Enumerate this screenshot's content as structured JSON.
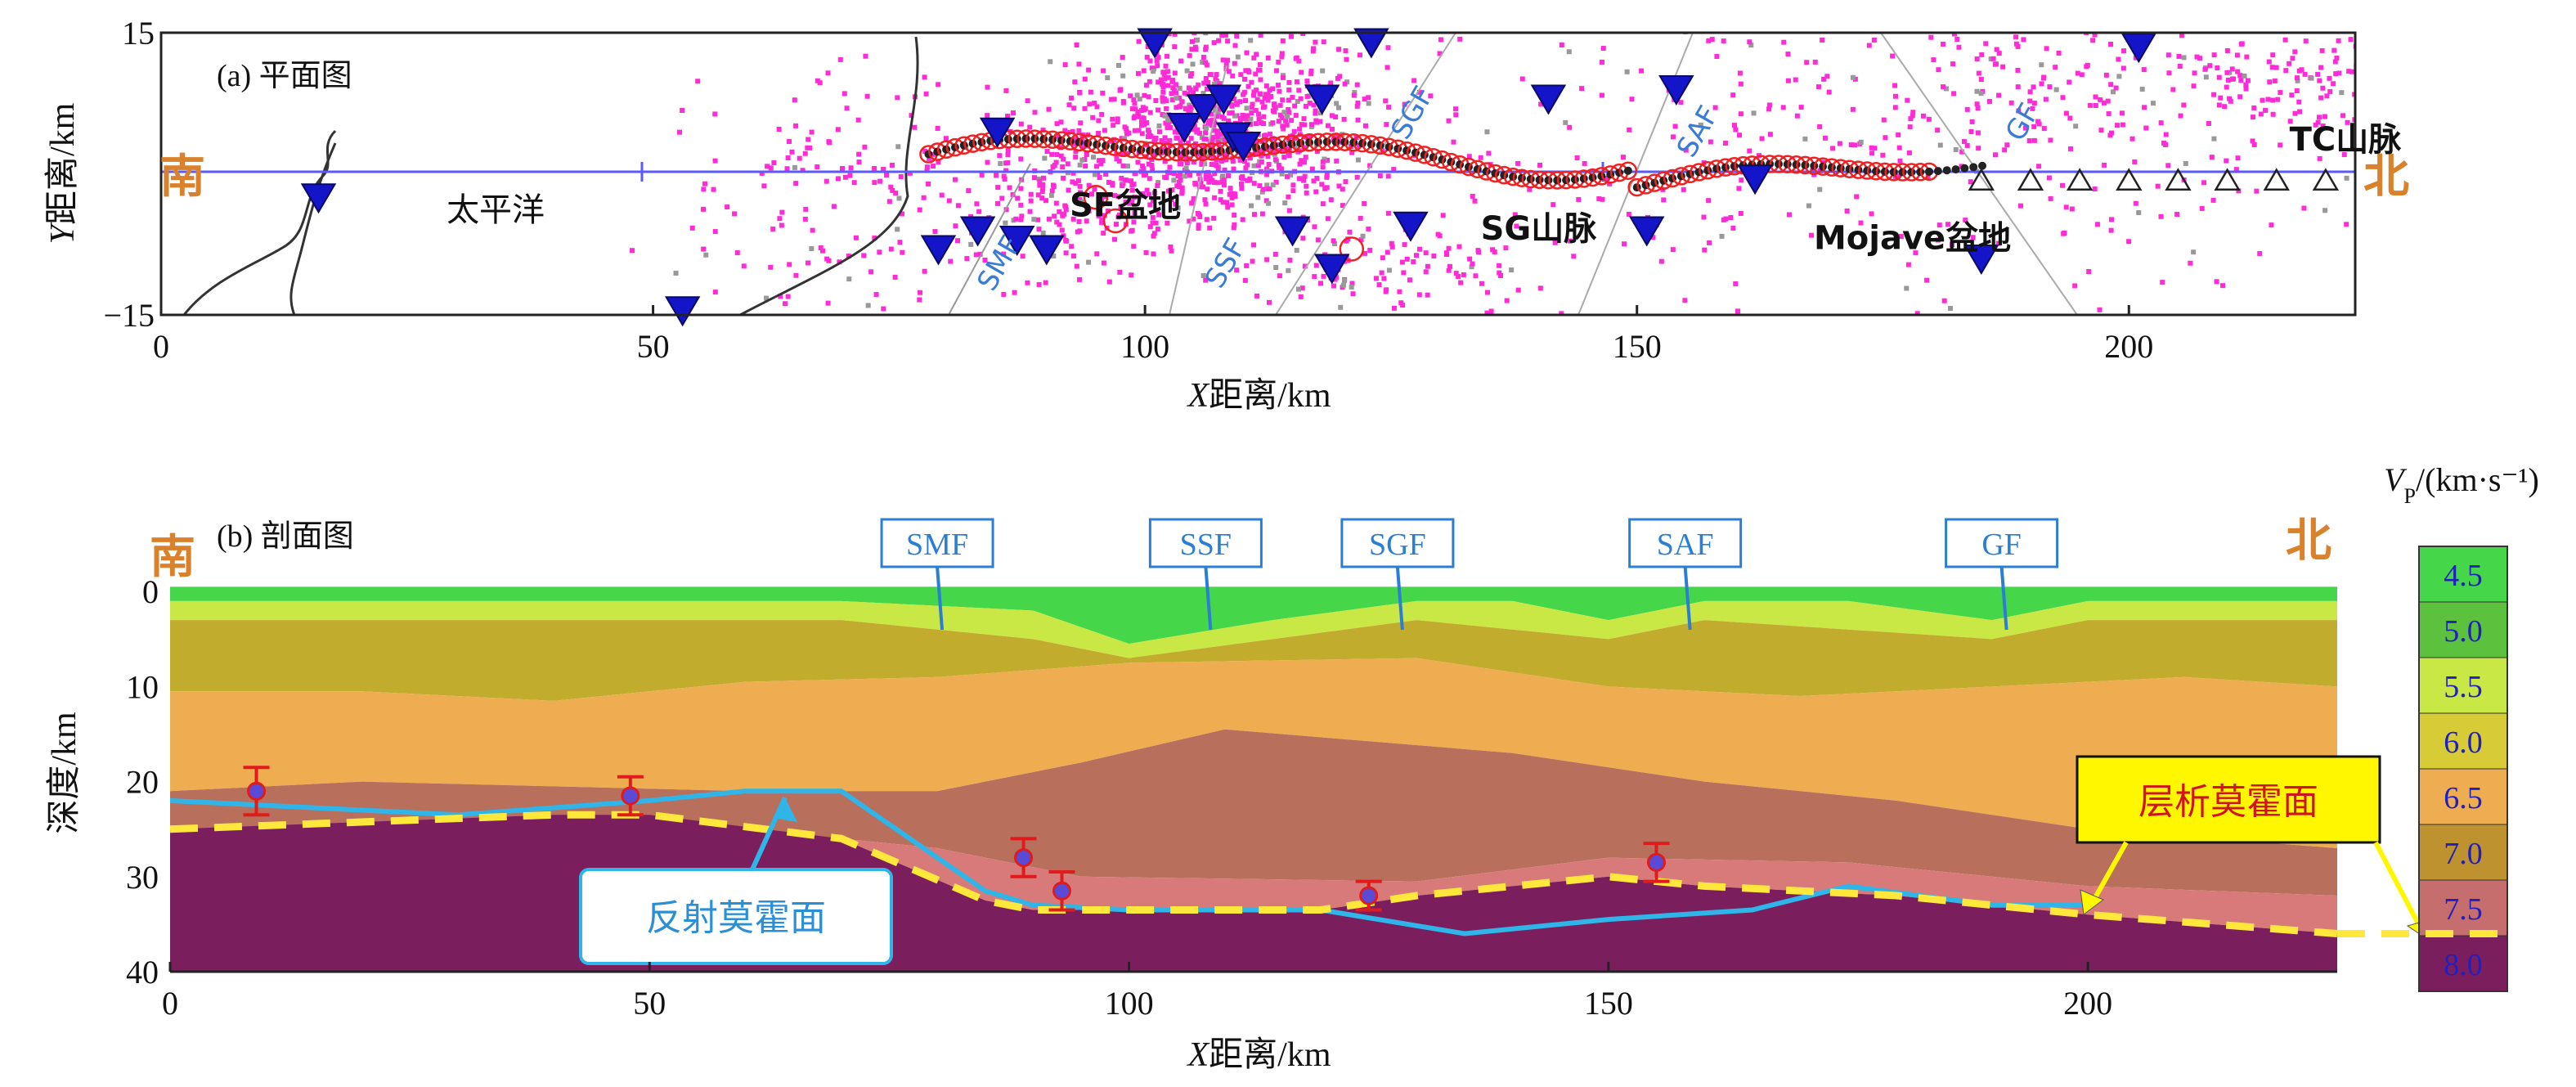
{
  "chart_data": [
    {
      "type": "scatter",
      "panel_label": "(a) 平面图",
      "xlabel_italic": "X",
      "xlabel": "距离/km",
      "ylabel_italic": "Y",
      "ylabel": "距离/km",
      "xlim": [
        0,
        223
      ],
      "ylim": [
        -15,
        15
      ],
      "x_ticks": [
        0,
        50,
        100,
        150,
        200
      ],
      "y_ticks": [
        {
          "value": 15,
          "label": "15"
        },
        {
          "value": -15,
          "label": "−15"
        }
      ],
      "direction_labels": {
        "south": "南",
        "north": "北"
      },
      "place_labels": [
        {
          "text": "太平洋",
          "x": 34,
          "y": -5,
          "bold": false
        },
        {
          "text": "SF盆地",
          "x": 98,
          "y": -4.5,
          "bold": true
        },
        {
          "text": "SG山脉",
          "x": 140,
          "y": -7,
          "bold": true
        },
        {
          "text": "Mojave盆地",
          "x": 178,
          "y": -8,
          "bold": true
        },
        {
          "text": "TC山脉",
          "x": 222,
          "y": 2.5,
          "bold": true
        }
      ],
      "fault_labels": [
        {
          "text": "SMF",
          "x": 86,
          "y": -10
        },
        {
          "text": "SSF",
          "x": 109,
          "y": -10
        },
        {
          "text": "SGF",
          "x": 128,
          "y": 6
        },
        {
          "text": "SAF",
          "x": 157,
          "y": 4
        },
        {
          "text": "GF",
          "x": 190,
          "y": 5
        }
      ],
      "stations_triangle_down": [
        [
          16,
          -2.5
        ],
        [
          53,
          -14.5
        ],
        [
          79,
          -8
        ],
        [
          83,
          -6
        ],
        [
          85,
          4.5
        ],
        [
          87,
          -7
        ],
        [
          90,
          -8
        ],
        [
          101,
          14
        ],
        [
          104,
          5
        ],
        [
          106,
          7
        ],
        [
          108,
          8
        ],
        [
          109,
          4
        ],
        [
          110,
          3
        ],
        [
          115,
          -6
        ],
        [
          118,
          8
        ],
        [
          119,
          -10
        ],
        [
          123,
          14
        ],
        [
          127,
          -5.5
        ],
        [
          141,
          8
        ],
        [
          151,
          -6
        ],
        [
          154,
          9
        ],
        [
          162,
          -0.5
        ],
        [
          185,
          -9
        ],
        [
          201,
          13.5
        ]
      ],
      "stations_triangle_open": [
        185,
        190,
        195,
        200,
        205,
        210,
        215,
        220
      ],
      "profile_line_y": 0,
      "profile_dots_range": [
        78,
        220
      ]
    },
    {
      "type": "heatmap",
      "panel_label": "(b) 剖面图",
      "xlabel_italic": "X",
      "xlabel": "距离/km",
      "ylabel": "深度/km",
      "xlim": [
        0,
        226
      ],
      "ylim": [
        40,
        -2
      ],
      "x_ticks": [
        0,
        50,
        100,
        150,
        200
      ],
      "y_ticks": [
        0,
        10,
        20,
        30,
        40
      ],
      "direction_labels": {
        "south": "南",
        "north": "北"
      },
      "fault_boxes": [
        {
          "text": "SMF",
          "x": 80
        },
        {
          "text": "SSF",
          "x": 108
        },
        {
          "text": "SGF",
          "x": 128
        },
        {
          "text": "SAF",
          "x": 158
        },
        {
          "text": "GF",
          "x": 191
        }
      ],
      "colorbar": {
        "title": "Vp/(km·s⁻¹)",
        "title_italic": "V",
        "title_sub": "P",
        "title_rest": "/(km·s⁻¹)",
        "values": [
          "4.5",
          "5.0",
          "5.5",
          "6.0",
          "6.5",
          "7.0",
          "7.5",
          "8.0"
        ],
        "colors": [
          "#45d64a",
          "#5cc23e",
          "#c9e845",
          "#d7cc35",
          "#efad52",
          "#bf9230",
          "#c66e6e",
          "#7b1e5e"
        ]
      },
      "tomo_moho": {
        "label": "层析莫霍面",
        "x": [
          0,
          40,
          50,
          70,
          85,
          90,
          120,
          130,
          140,
          150,
          160,
          170,
          180,
          200,
          226
        ],
        "y": [
          25,
          23.5,
          23.5,
          26,
          32.5,
          33.5,
          33.5,
          32,
          31,
          30,
          31,
          31.5,
          32,
          34,
          36
        ]
      },
      "reflect_moho": {
        "label": "反射莫霍面",
        "x": [
          0,
          10,
          30,
          50,
          60,
          70,
          85,
          90,
          100,
          120,
          135,
          150,
          165,
          175,
          190,
          200
        ],
        "y": [
          22,
          22.5,
          23.5,
          22,
          21,
          21,
          31.5,
          33,
          33.5,
          33.5,
          36,
          34.5,
          33.5,
          31,
          33,
          33
        ]
      },
      "error_bar_points": [
        {
          "x": 9,
          "depth": 21,
          "err": 2.5
        },
        {
          "x": 48,
          "depth": 21.5,
          "err": 2
        },
        {
          "x": 89,
          "depth": 28,
          "err": 2
        },
        {
          "x": 93,
          "depth": 31.5,
          "err": 2
        },
        {
          "x": 125,
          "depth": 32,
          "err": 1.5
        },
        {
          "x": 155,
          "depth": 28.5,
          "err": 2
        }
      ]
    }
  ]
}
